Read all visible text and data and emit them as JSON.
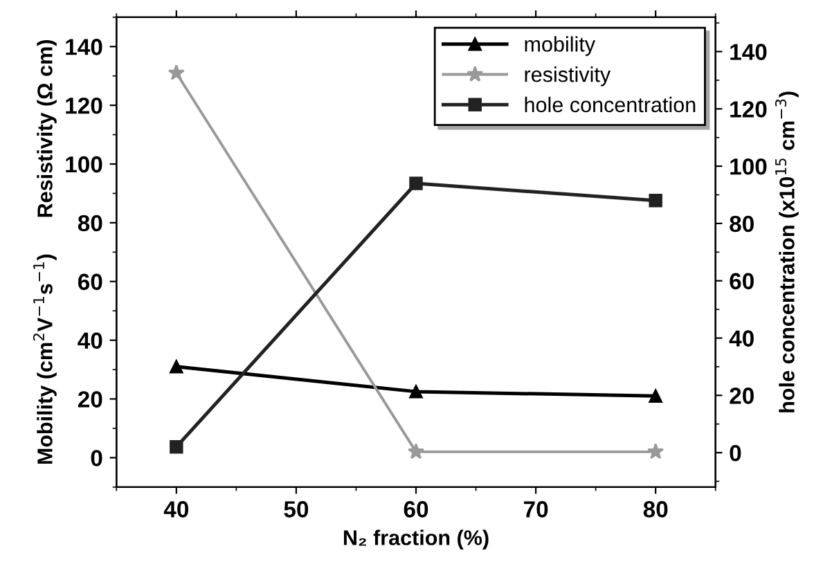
{
  "chart_data": {
    "type": "line",
    "xlabel": "N₂ fraction (%)",
    "ylabel": "Mobility (cm$^{2}$V$^{−1}$s$^{−1}$)      Resistivity (Ω cm)",
    "y2label": "hole concentration (x10$^{15}$ cm$^{−3}$)",
    "x": [
      40,
      60,
      80
    ],
    "series": [
      {
        "name": "mobility",
        "color": "#000000",
        "marker": "triangle",
        "values": [
          31,
          22.5,
          21
        ]
      },
      {
        "name": "resistivity",
        "color": "#999999",
        "marker": "star",
        "values": [
          131,
          2,
          2
        ]
      },
      {
        "name": "hole concentration",
        "color": "#222222",
        "marker": "square",
        "axis": "y2",
        "values": [
          2,
          94,
          88
        ]
      }
    ],
    "xlim": [
      35,
      85
    ],
    "xticks": [
      40,
      50,
      60,
      70,
      80
    ],
    "ylim": [
      -10,
      150
    ],
    "yticks": [
      0,
      20,
      40,
      60,
      80,
      100,
      120,
      140
    ],
    "y2lim": [
      -12,
      152
    ],
    "y2ticks": [
      0,
      20,
      40,
      60,
      80,
      100,
      120,
      140
    ],
    "legend": "top right",
    "grid": false,
    "line_style": "solid"
  }
}
